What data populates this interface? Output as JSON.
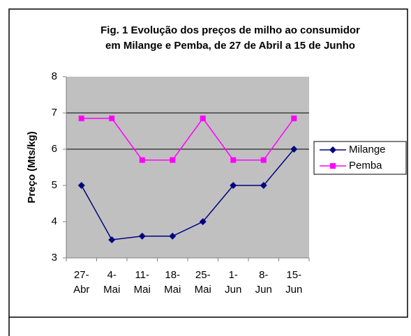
{
  "chart_data": {
    "type": "line",
    "title": [
      "Fig. 1 Evolução dos preços de milho ao consumidor",
      "em Milange e Pemba, de 27 de Abril a 15 de Junho"
    ],
    "y_label": "Preço (Mts/kg)",
    "categories": [
      [
        "27-",
        "Abr"
      ],
      [
        "4-",
        "Mai"
      ],
      [
        "11-",
        "Mai"
      ],
      [
        "18-",
        "Mai"
      ],
      [
        "25-",
        "Mai"
      ],
      [
        "1-",
        "Jun"
      ],
      [
        "8-",
        "Jun"
      ],
      [
        "15-",
        "Jun"
      ]
    ],
    "series": [
      {
        "name": "Milange",
        "color": "#000080",
        "marker": "diamond",
        "values": [
          5,
          3.5,
          3.6,
          3.6,
          4,
          5,
          5,
          6
        ]
      },
      {
        "name": "Pemba",
        "color": "#ff00ff",
        "marker": "square",
        "values": [
          6.85,
          6.85,
          5.7,
          5.7,
          6.85,
          5.7,
          5.7,
          6.85
        ]
      }
    ],
    "ylim": [
      3,
      8
    ],
    "yticks": [
      3,
      4,
      5,
      6,
      7,
      8
    ],
    "gridlines": [
      6,
      7
    ],
    "legend": "right"
  }
}
